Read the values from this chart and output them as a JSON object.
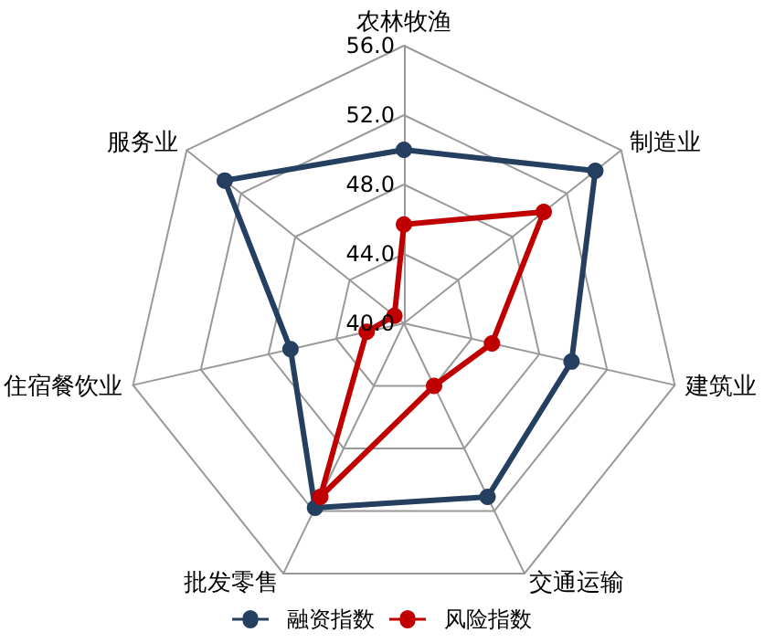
{
  "chart_data": {
    "type": "radar",
    "categories": [
      "农林牧渔",
      "制造业",
      "建筑业",
      "交通运输",
      "批发零售",
      "住宿餐饮业",
      "服务业"
    ],
    "series": [
      {
        "name": "融资指数",
        "color": "#243f60",
        "values": [
          50.0,
          54.1,
          49.9,
          51.1,
          51.8,
          46.7,
          53.2
        ]
      },
      {
        "name": "风险指数",
        "color": "#c00000",
        "values": [
          45.7,
          50.3,
          45.2,
          44.0,
          51.1,
          42.2,
          40.7
        ]
      }
    ],
    "ylim": [
      40,
      56
    ],
    "yticks": [
      {
        "value": 40,
        "label": "40.0"
      },
      {
        "value": 44,
        "label": "44.0"
      },
      {
        "value": 48,
        "label": "48.0"
      },
      {
        "value": 52,
        "label": "52.0"
      },
      {
        "value": 56,
        "label": "56.0"
      }
    ],
    "legend": "bottom",
    "marker": "circle",
    "line_style": "solid"
  }
}
